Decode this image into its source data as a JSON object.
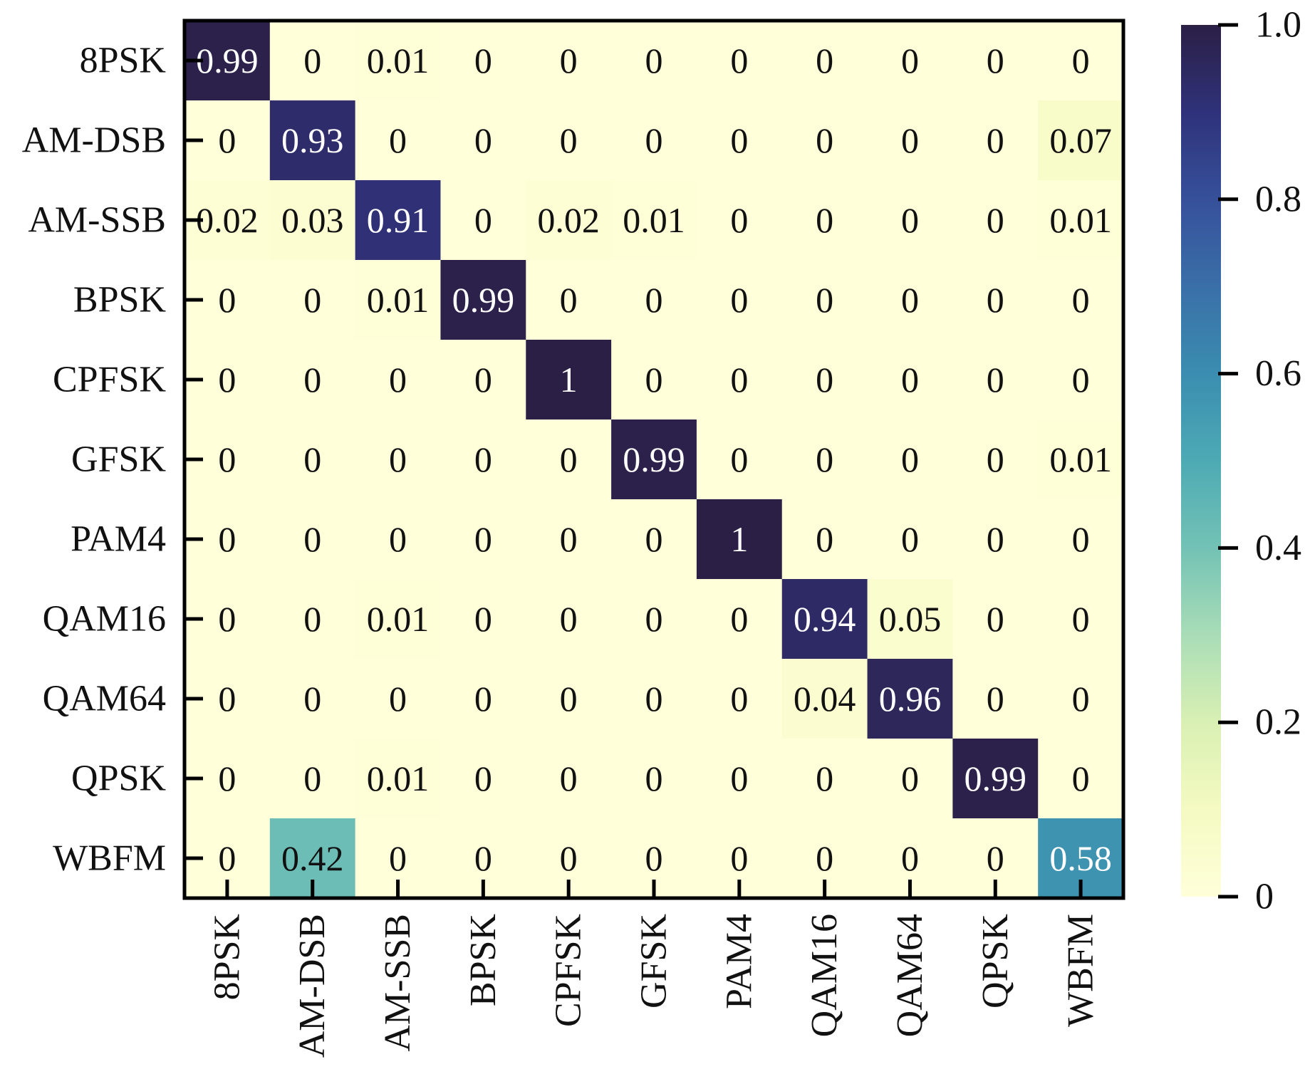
{
  "chart_data": {
    "type": "heatmap",
    "title": "",
    "xlabel": "",
    "ylabel": "",
    "rows": [
      "8PSK",
      "AM-DSB",
      "AM-SSB",
      "BPSK",
      "CPFSK",
      "GFSK",
      "PAM4",
      "QAM16",
      "QAM64",
      "QPSK",
      "WBFM"
    ],
    "columns": [
      "8PSK",
      "AM-DSB",
      "AM-SSB",
      "BPSK",
      "CPFSK",
      "GFSK",
      "PAM4",
      "QAM16",
      "QAM64",
      "QPSK",
      "WBFM"
    ],
    "values": [
      [
        0.99,
        0,
        0.01,
        0,
        0,
        0,
        0,
        0,
        0,
        0,
        0
      ],
      [
        0,
        0.93,
        0,
        0,
        0,
        0,
        0,
        0,
        0,
        0,
        0.07
      ],
      [
        0.02,
        0.03,
        0.91,
        0,
        0.02,
        0.01,
        0,
        0,
        0,
        0,
        0.01
      ],
      [
        0,
        0,
        0.01,
        0.99,
        0,
        0,
        0,
        0,
        0,
        0,
        0
      ],
      [
        0,
        0,
        0,
        0,
        1,
        0,
        0,
        0,
        0,
        0,
        0
      ],
      [
        0,
        0,
        0,
        0,
        0,
        0.99,
        0,
        0,
        0,
        0,
        0.01
      ],
      [
        0,
        0,
        0,
        0,
        0,
        0,
        1,
        0,
        0,
        0,
        0
      ],
      [
        0,
        0,
        0.01,
        0,
        0,
        0,
        0,
        0.94,
        0.05,
        0,
        0
      ],
      [
        0,
        0,
        0,
        0,
        0,
        0,
        0,
        0.04,
        0.96,
        0,
        0
      ],
      [
        0,
        0,
        0.01,
        0,
        0,
        0,
        0,
        0,
        0,
        0.99,
        0
      ],
      [
        0,
        0.42,
        0,
        0,
        0,
        0,
        0,
        0,
        0,
        0,
        0.58
      ]
    ],
    "colorbar": {
      "range": [
        0,
        1
      ],
      "ticks": [
        0,
        0.2,
        0.4,
        0.6,
        0.8,
        1.0
      ],
      "tick_labels": [
        "0",
        "0.2",
        "0.4",
        "0.6",
        "0.8",
        "1.0"
      ],
      "colormap": [
        {
          "stop": 0.0,
          "color": "#ffffd9"
        },
        {
          "stop": 0.1,
          "color": "#f4fac2"
        },
        {
          "stop": 0.2,
          "color": "#d9f0b3"
        },
        {
          "stop": 0.3,
          "color": "#a9ddb7"
        },
        {
          "stop": 0.4,
          "color": "#73c2b5"
        },
        {
          "stop": 0.5,
          "color": "#4daab4"
        },
        {
          "stop": 0.6,
          "color": "#3a8db0"
        },
        {
          "stop": 0.7,
          "color": "#3a6fa8"
        },
        {
          "stop": 0.8,
          "color": "#36509a"
        },
        {
          "stop": 0.9,
          "color": "#2f327a"
        },
        {
          "stop": 1.0,
          "color": "#2b1f45"
        }
      ]
    },
    "colors": {
      "dark_text": "#111111",
      "light_text": "#ffffff",
      "axis": "#000000"
    }
  }
}
